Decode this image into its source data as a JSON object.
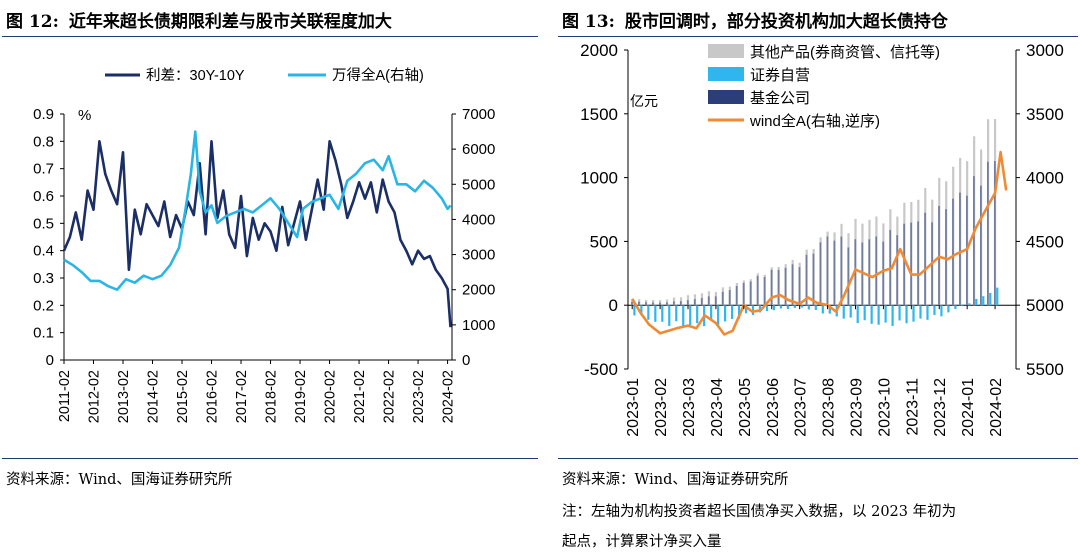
{
  "left": {
    "figure_label": "图 12:",
    "title": "近年来超长债期限利差与股市关联程度加大",
    "source": "资料来源：Wind、国海证券研究所"
  },
  "right": {
    "figure_label": "图 13:",
    "title": "股市回调时，部分投资机构加大超长债持仓",
    "source": "资料来源：Wind、国海证券研究所",
    "note_line1": "注：左轴为机构投资者超长国债净买入数据，以 2023 年初为",
    "note_line2": "起点，计算累计净买入量"
  },
  "colors": {
    "spread": "#1b2f66",
    "wind_a_left": "#29b6e6",
    "other_products": "#c8c8c8",
    "securities": "#2fb6ee",
    "fund": "#2c3e7a",
    "wind_a_right": "#f08a35",
    "title_rule": "#1f3b73"
  },
  "chart_data": [
    {
      "type": "line",
      "unit_label": "%",
      "x_ticks": [
        "2011-02",
        "2012-02",
        "2013-02",
        "2014-02",
        "2015-02",
        "2016-02",
        "2017-02",
        "2018-02",
        "2019-02",
        "2020-02",
        "2021-02",
        "2022-02",
        "2023-02",
        "2024-02"
      ],
      "ylim_left": [
        0,
        0.9
      ],
      "yticks_left": [
        "0",
        "0.1",
        "0.2",
        "0.3",
        "0.4",
        "0.5",
        "0.6",
        "0.7",
        "0.8",
        "0.9"
      ],
      "ylim_right": [
        0,
        7000
      ],
      "yticks_right": [
        "0",
        "1000",
        "2000",
        "3000",
        "4000",
        "5000",
        "6000",
        "7000"
      ],
      "series": [
        {
          "name": "利差：30Y-10Y",
          "axis": "left",
          "x": [
            2011.0,
            2011.2,
            2011.4,
            2011.6,
            2011.8,
            2012.0,
            2012.2,
            2012.4,
            2012.6,
            2012.8,
            2013.0,
            2013.2,
            2013.4,
            2013.6,
            2013.8,
            2014.0,
            2014.2,
            2014.4,
            2014.6,
            2014.8,
            2015.0,
            2015.2,
            2015.4,
            2015.6,
            2015.8,
            2016.0,
            2016.2,
            2016.4,
            2016.6,
            2016.8,
            2017.0,
            2017.2,
            2017.4,
            2017.6,
            2017.8,
            2018.0,
            2018.2,
            2018.4,
            2018.6,
            2018.8,
            2019.0,
            2019.2,
            2019.4,
            2019.6,
            2019.8,
            2020.0,
            2020.2,
            2020.4,
            2020.6,
            2020.8,
            2021.0,
            2021.2,
            2021.4,
            2021.6,
            2021.8,
            2022.0,
            2022.2,
            2022.4,
            2022.6,
            2022.8,
            2023.0,
            2023.2,
            2023.4,
            2023.6,
            2023.8,
            2024.0,
            2024.1
          ],
          "y": [
            0.4,
            0.45,
            0.54,
            0.44,
            0.62,
            0.55,
            0.8,
            0.68,
            0.62,
            0.57,
            0.76,
            0.33,
            0.55,
            0.46,
            0.57,
            0.53,
            0.49,
            0.58,
            0.45,
            0.53,
            0.48,
            0.58,
            0.53,
            0.72,
            0.46,
            0.8,
            0.52,
            0.62,
            0.46,
            0.41,
            0.6,
            0.38,
            0.52,
            0.44,
            0.5,
            0.47,
            0.4,
            0.56,
            0.42,
            0.5,
            0.58,
            0.44,
            0.55,
            0.66,
            0.55,
            0.8,
            0.73,
            0.64,
            0.52,
            0.58,
            0.65,
            0.59,
            0.65,
            0.54,
            0.66,
            0.58,
            0.54,
            0.44,
            0.4,
            0.35,
            0.4,
            0.37,
            0.38,
            0.33,
            0.3,
            0.26,
            0.12
          ]
        },
        {
          "name": "万得全A(右轴)",
          "axis": "right",
          "x": [
            2011.0,
            2011.3,
            2011.6,
            2011.9,
            2012.2,
            2012.5,
            2012.8,
            2013.1,
            2013.4,
            2013.7,
            2014.0,
            2014.3,
            2014.6,
            2014.9,
            2015.1,
            2015.3,
            2015.45,
            2015.6,
            2015.8,
            2016.0,
            2016.2,
            2016.5,
            2016.8,
            2017.1,
            2017.4,
            2017.7,
            2018.0,
            2018.3,
            2018.6,
            2018.9,
            2019.1,
            2019.4,
            2019.7,
            2020.0,
            2020.3,
            2020.6,
            2020.9,
            2021.2,
            2021.5,
            2021.8,
            2022.0,
            2022.3,
            2022.6,
            2022.9,
            2023.2,
            2023.5,
            2023.8,
            2024.0,
            2024.1
          ],
          "y": [
            2850,
            2700,
            2500,
            2250,
            2250,
            2100,
            2000,
            2300,
            2200,
            2400,
            2300,
            2400,
            2700,
            3200,
            4200,
            5300,
            6500,
            4800,
            4200,
            4400,
            3900,
            4100,
            4200,
            4300,
            4200,
            4400,
            4600,
            4300,
            3900,
            3500,
            4300,
            4500,
            4600,
            4700,
            4300,
            5100,
            5300,
            5600,
            5700,
            5400,
            5800,
            5000,
            5000,
            4800,
            5100,
            4900,
            4600,
            4300,
            4400
          ]
        }
      ]
    },
    {
      "type": "bar",
      "unit_label": "亿元",
      "x_ticks": [
        "2023-01",
        "2023-02",
        "2023-03",
        "2023-04",
        "2023-05",
        "2023-06",
        "2023-07",
        "2023-08",
        "2023-09",
        "2023-10",
        "2023-11",
        "2023-12",
        "2024-01",
        "2024-02"
      ],
      "ylim_left": [
        -500,
        2000
      ],
      "yticks_left": [
        "-500",
        "0",
        "500",
        "1000",
        "1500",
        "2000"
      ],
      "ylim_right": [
        5500,
        3000
      ],
      "yticks_right": [
        "3000",
        "3500",
        "4000",
        "4500",
        "5000",
        "5500"
      ],
      "right_axis_inverted": true,
      "series": [
        {
          "name": "其他产品(券商资管、信托等)",
          "kind": "bar",
          "x": [
            0,
            1,
            2,
            3,
            4,
            5,
            6,
            7,
            8,
            9,
            10,
            11,
            12,
            13
          ],
          "y": [
            50,
            40,
            80,
            120,
            200,
            300,
            380,
            600,
            680,
            720,
            850,
            1000,
            1250,
            1550
          ]
        },
        {
          "name": "证券自营",
          "kind": "bar",
          "x": [
            0,
            1,
            2,
            3,
            4,
            5,
            6,
            7,
            8,
            9,
            10,
            11,
            12,
            13
          ],
          "y": [
            -80,
            -160,
            -170,
            -160,
            -90,
            -40,
            -20,
            -80,
            -140,
            -170,
            -140,
            -90,
            20,
            140
          ]
        },
        {
          "name": "基金公司",
          "kind": "bar",
          "x": [
            0,
            1,
            2,
            3,
            4,
            5,
            6,
            7,
            8,
            9,
            10,
            11,
            12,
            13
          ],
          "y": [
            30,
            20,
            40,
            80,
            180,
            280,
            340,
            560,
            520,
            560,
            680,
            780,
            950,
            1200
          ]
        },
        {
          "name": "wind全A(右轴,逆序)",
          "kind": "line",
          "x": [
            0,
            0.3,
            0.6,
            1.0,
            1.3,
            1.6,
            2.0,
            2.3,
            2.6,
            3.0,
            3.3,
            3.6,
            4.0,
            4.3,
            4.6,
            5.0,
            5.3,
            5.6,
            6.0,
            6.3,
            6.6,
            7.0,
            7.3,
            7.6,
            8.0,
            8.3,
            8.6,
            9.0,
            9.3,
            9.6,
            10.0,
            10.3,
            10.6,
            11.0,
            11.3,
            11.6,
            12.0,
            12.3,
            12.6,
            13.0,
            13.2,
            13.4
          ],
          "y": [
            4950,
            5060,
            5150,
            5220,
            5200,
            5180,
            5160,
            5180,
            5080,
            5140,
            5230,
            5200,
            5000,
            5050,
            5040,
            4940,
            4920,
            4960,
            4990,
            4940,
            4980,
            5000,
            5050,
            4920,
            4720,
            4750,
            4780,
            4730,
            4710,
            4560,
            4760,
            4760,
            4700,
            4620,
            4640,
            4600,
            4560,
            4400,
            4280,
            4120,
            3800,
            4100
          ]
        }
      ]
    }
  ]
}
